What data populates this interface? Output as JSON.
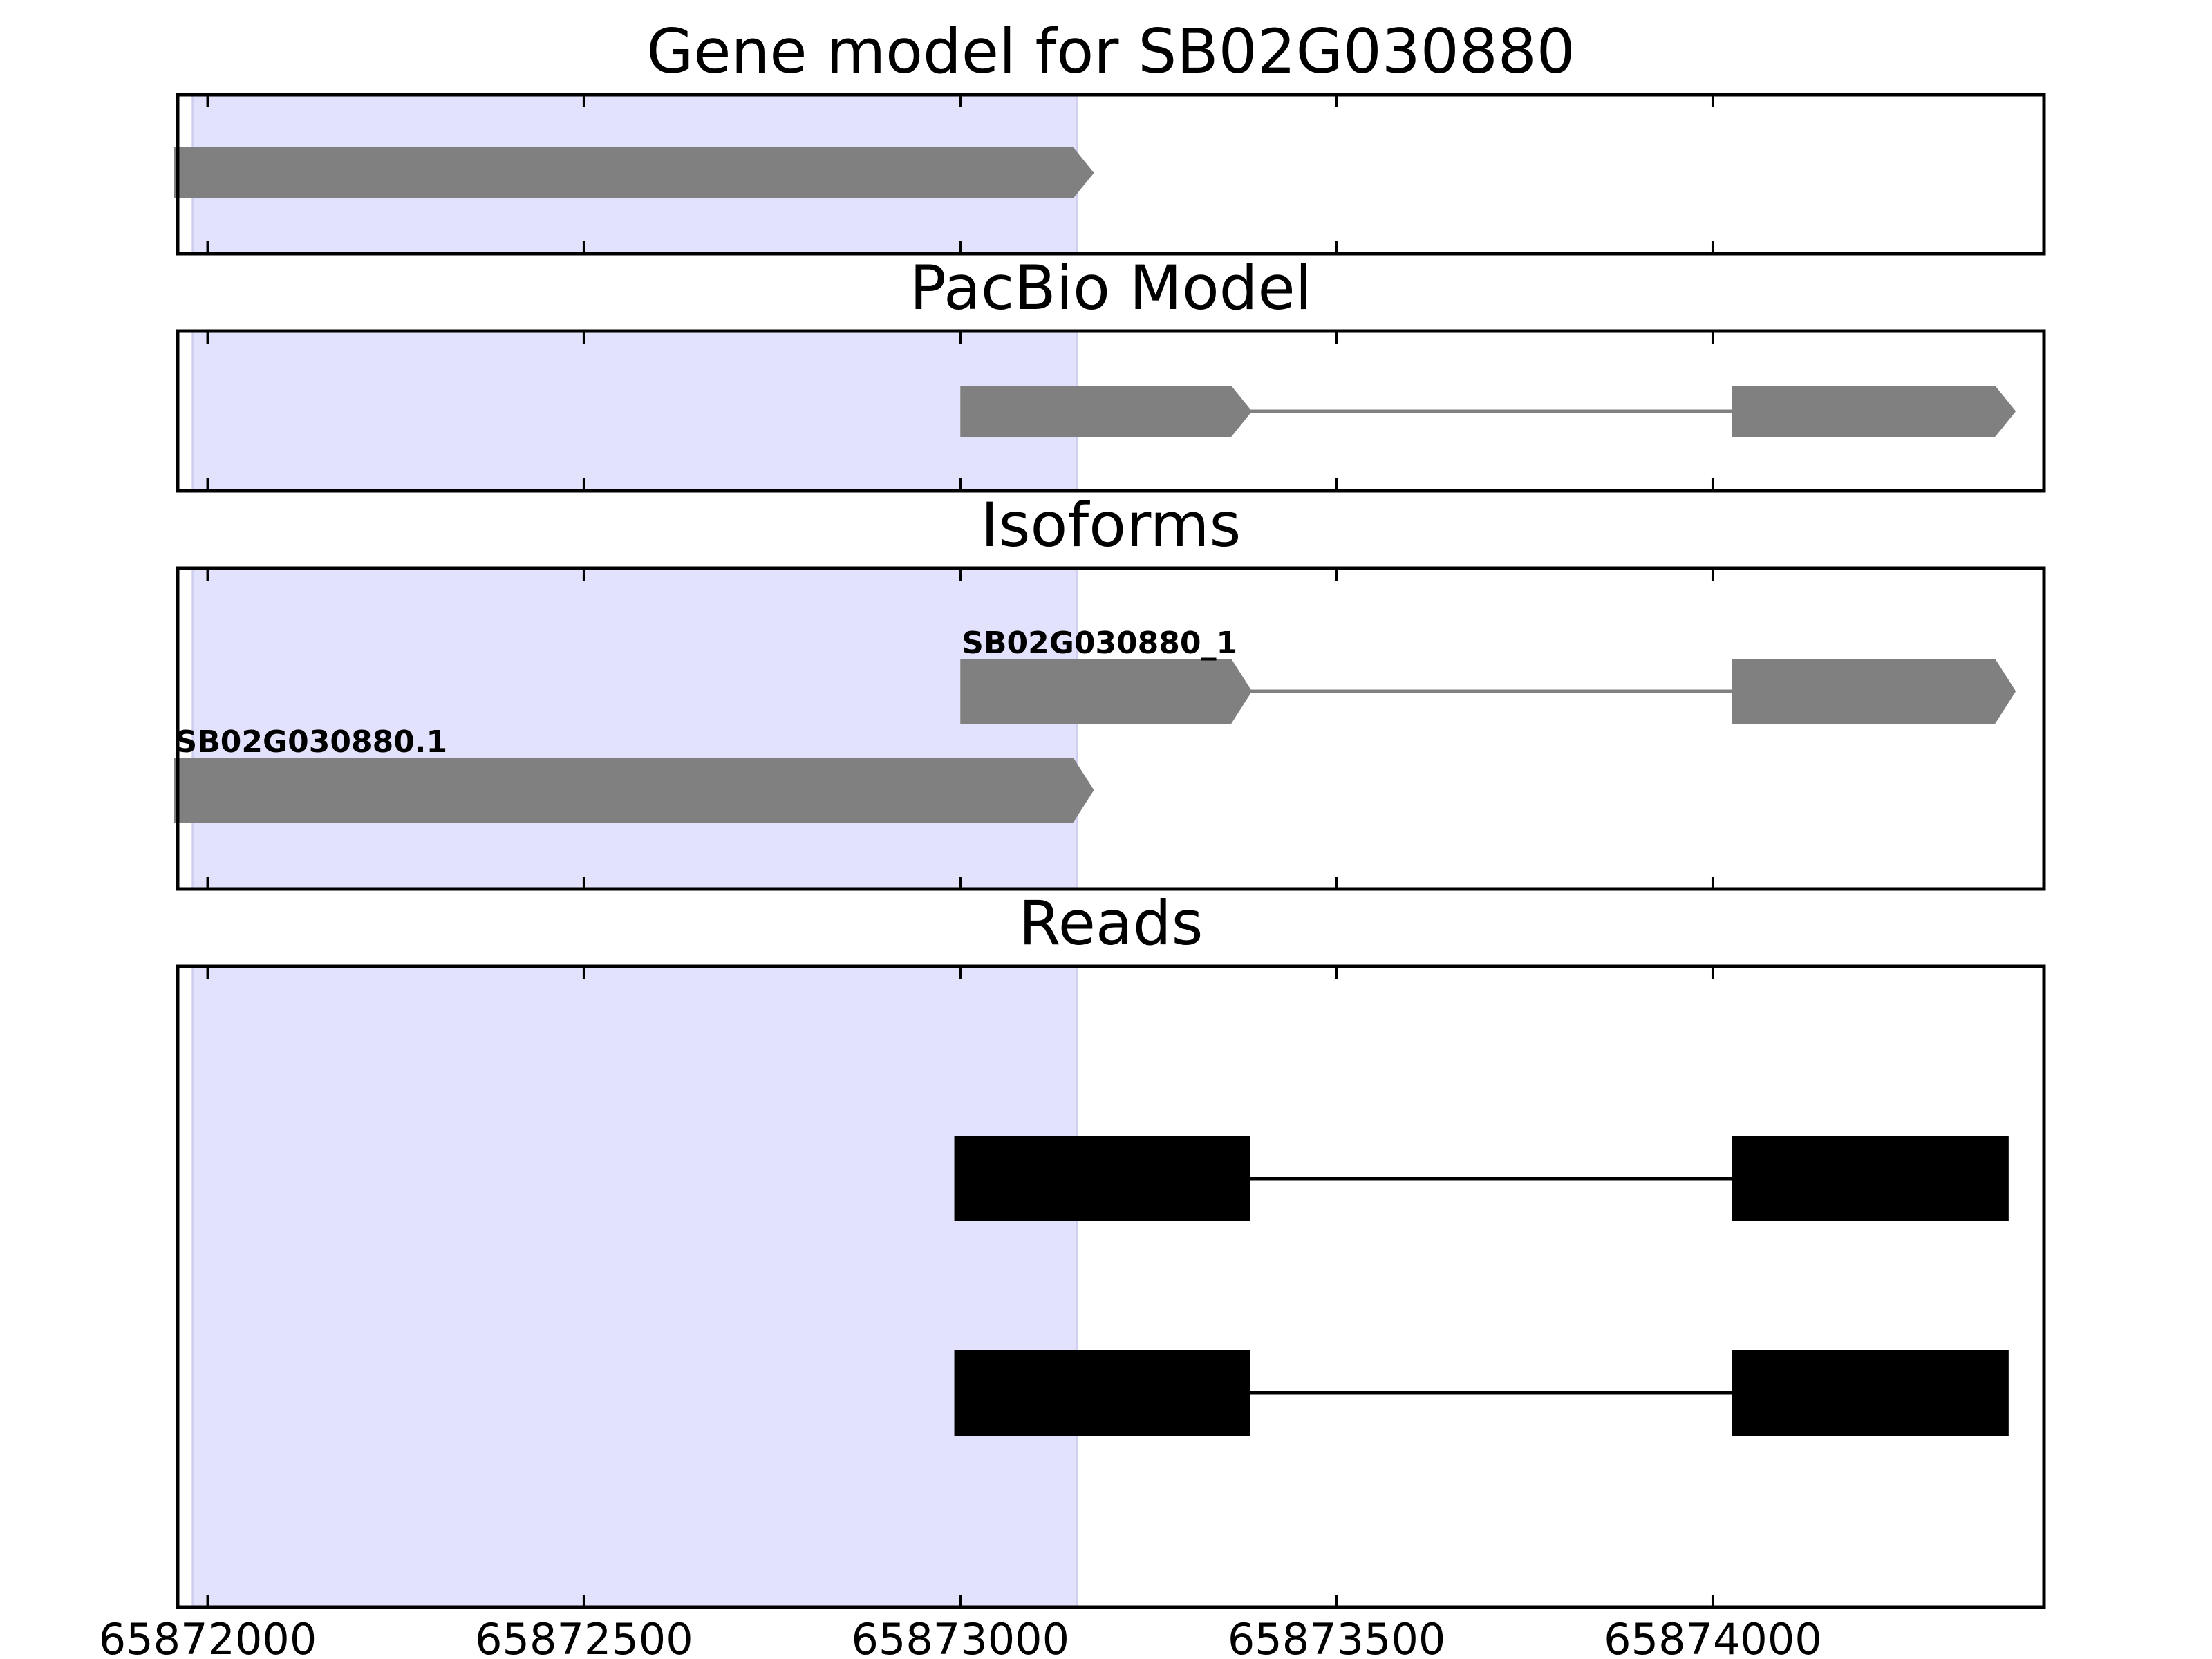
{
  "chart_data": {
    "type": "gene-track",
    "xlim": [
      65871960,
      65874440
    ],
    "xticks": [
      65872000,
      65872500,
      65873000,
      65873500,
      65874000
    ],
    "xtick_labels": [
      "65872000",
      "65872500",
      "65873000",
      "65873500",
      "65874000"
    ],
    "highlight_region": [
      65871980,
      65873155
    ],
    "highlight_color": "#e2e2fc",
    "panels": [
      {
        "title": "Gene model for SB02G030880",
        "tracks": [
          {
            "label": "",
            "exons": [
              [
                65871955,
                65873150
              ]
            ],
            "strand": "+",
            "color": "#808080",
            "style": "arrow"
          }
        ]
      },
      {
        "title": "PacBio Model",
        "tracks": [
          {
            "label": "",
            "exons": [
              [
                65873000,
                65873360
              ],
              [
                65874025,
                65874375
              ]
            ],
            "strand": "+",
            "color": "#808080",
            "style": "arrow"
          }
        ]
      },
      {
        "title": "Isoforms",
        "tracks": [
          {
            "label": "SB02G030880_1",
            "exons": [
              [
                65873000,
                65873360
              ],
              [
                65874025,
                65874375
              ]
            ],
            "strand": "+",
            "color": "#808080",
            "style": "arrow"
          },
          {
            "label": "SB02G030880.1",
            "exons": [
              [
                65871955,
                65873150
              ]
            ],
            "strand": "+",
            "color": "#808080",
            "style": "arrow"
          }
        ]
      },
      {
        "title": "Reads",
        "tracks": [
          {
            "label": "",
            "exons": [
              [
                65872992,
                65873385
              ],
              [
                65874025,
                65874393
              ]
            ],
            "strand": "+",
            "color": "#000000",
            "style": "box"
          },
          {
            "label": "",
            "exons": [
              [
                65872992,
                65873385
              ],
              [
                65874025,
                65874393
              ]
            ],
            "strand": "+",
            "color": "#000000",
            "style": "box"
          }
        ]
      }
    ]
  }
}
